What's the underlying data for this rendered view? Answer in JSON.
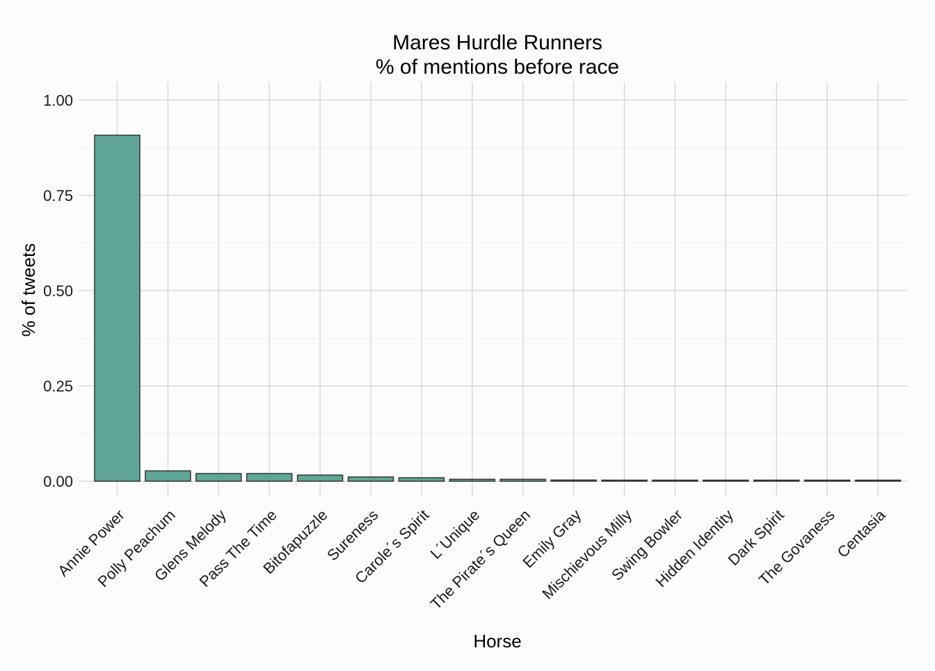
{
  "chart_data": {
    "type": "bar",
    "title": "Mares Hurdle Runners",
    "subtitle": "% of mentions before race",
    "xlabel": "Horse",
    "ylabel": "% of tweets",
    "ylim": [
      -0.04,
      1.05
    ],
    "yticks": [
      0,
      0.25,
      0.5,
      0.75,
      1.0
    ],
    "ytick_labels": [
      "0.00",
      "0.25",
      "0.50",
      "0.75",
      "1.00"
    ],
    "grid": true,
    "categories": [
      "Annie Power",
      "Polly Peachum",
      "Glens Melody",
      "Pass The Time",
      "Bitofapuzzle",
      "Sureness",
      "Carole´s Spirit",
      "L´Unique",
      "The Pirate´s Queen",
      "Emily Gray",
      "Mischievous Milly",
      "Swing Bowler",
      "Hidden Identity",
      "Dark Spirit",
      "The Govaness",
      "Centasia"
    ],
    "values": [
      0.908,
      0.027,
      0.02,
      0.02,
      0.016,
      0.011,
      0.009,
      0.005,
      0.005,
      0.003,
      0.001,
      0.001,
      0.001,
      0.001,
      0.001,
      0.001
    ],
    "colors": {
      "bar_fill": "#5fa696",
      "bar_stroke": "#333333",
      "grid_major": "#d9d9d9",
      "grid_minor": "#efefef",
      "background": "#fcfcfc",
      "text": "#000000"
    }
  }
}
